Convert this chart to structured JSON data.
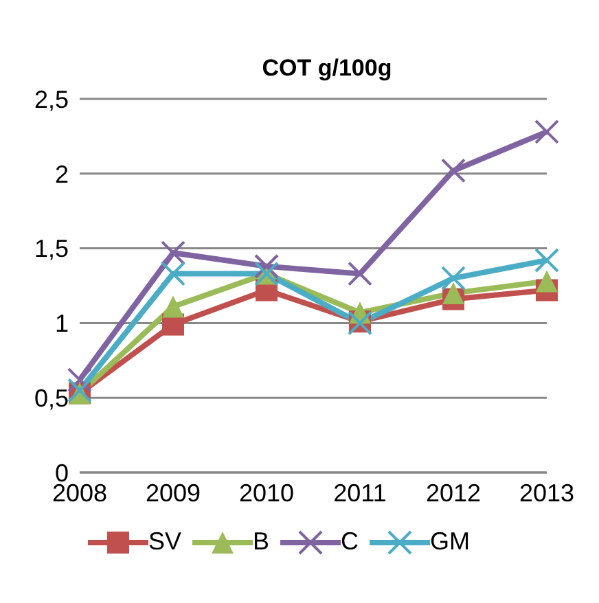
{
  "chart_data": {
    "type": "line",
    "title": "COT  g/100g",
    "categories": [
      "2008",
      "2009",
      "2010",
      "2011",
      "2012",
      "2013"
    ],
    "series": [
      {
        "name": "SV",
        "color": "#c0504d",
        "marker": "square",
        "values": [
          0.53,
          0.99,
          1.22,
          1.01,
          1.16,
          1.22
        ]
      },
      {
        "name": "B",
        "color": "#9bbb59",
        "marker": "triangle",
        "values": [
          0.53,
          1.11,
          1.33,
          1.07,
          1.2,
          1.28
        ]
      },
      {
        "name": "C",
        "color": "#8064a2",
        "marker": "cross",
        "values": [
          0.62,
          1.47,
          1.38,
          1.33,
          2.02,
          2.28
        ]
      },
      {
        "name": "GM",
        "color": "#4bacc6",
        "marker": "cross",
        "values": [
          0.55,
          1.33,
          1.33,
          1.0,
          1.3,
          1.42
        ]
      }
    ],
    "ylim": [
      0,
      2.5
    ],
    "yticks": [
      0,
      {
        "value": 0.5,
        "label": "0,5"
      },
      1,
      {
        "value": 1.5,
        "label": "1,5"
      },
      2,
      {
        "value": 2.5,
        "label": "2,5"
      }
    ],
    "grid": "y",
    "legend": "bottom",
    "line_style": "solid"
  }
}
